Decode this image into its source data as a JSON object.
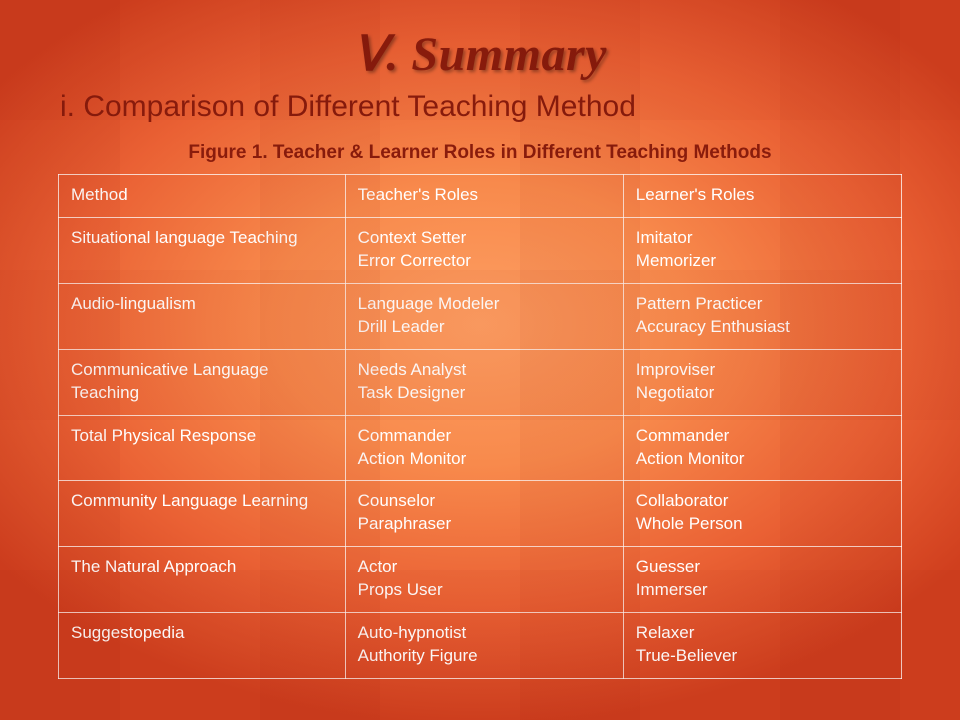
{
  "title": "Ⅴ. Summary",
  "subtitle": "i. Comparison of Different Teaching Method",
  "figure_caption": "Figure 1. Teacher & Learner Roles in Different Teaching Methods",
  "colors": {
    "heading_text": "#8a1c0c",
    "body_text": "#ffffff",
    "cell_border": "rgba(255,255,255,0.75)",
    "bg_center": "#fd9e62",
    "bg_mid": "#f88a4c",
    "bg_outer": "#d03f1e"
  },
  "typography": {
    "title_family": "Times New Roman",
    "title_style": "italic bold",
    "title_size_pt": 36,
    "subtitle_size_pt": 22,
    "caption_size_pt": 14,
    "cell_size_pt": 13
  },
  "table": {
    "type": "table",
    "column_widths_pct": [
      34,
      33,
      33
    ],
    "columns": [
      "Method",
      "Teacher's Roles",
      "Learner's Roles"
    ],
    "rows": [
      {
        "method": "Situational language Teaching",
        "teacher": [
          "Context Setter",
          "Error Corrector"
        ],
        "learner": [
          "Imitator",
          "Memorizer"
        ]
      },
      {
        "method": "Audio-lingualism",
        "teacher": [
          "Language Modeler",
          "Drill Leader"
        ],
        "learner": [
          "Pattern Practicer",
          "Accuracy Enthusiast"
        ]
      },
      {
        "method": "Communicative Language Teaching",
        "teacher": [
          "Needs Analyst",
          "Task Designer"
        ],
        "learner": [
          "Improviser",
          "Negotiator"
        ]
      },
      {
        "method": "Total Physical Response",
        "teacher": [
          "Commander",
          "Action Monitor"
        ],
        "learner": [
          "Commander",
          "Action Monitor"
        ]
      },
      {
        "method": "Community Language Learning",
        "teacher": [
          "Counselor",
          "Paraphraser"
        ],
        "learner": [
          "Collaborator",
          "Whole Person"
        ]
      },
      {
        "method": "The Natural Approach",
        "teacher": [
          "Actor",
          "Props User"
        ],
        "learner": [
          "Guesser",
          "Immerser"
        ]
      },
      {
        "method": "Suggestopedia",
        "teacher": [
          "Auto-hypnotist",
          "Authority Figure"
        ],
        "learner": [
          "Relaxer",
          "True-Believer"
        ]
      }
    ]
  }
}
